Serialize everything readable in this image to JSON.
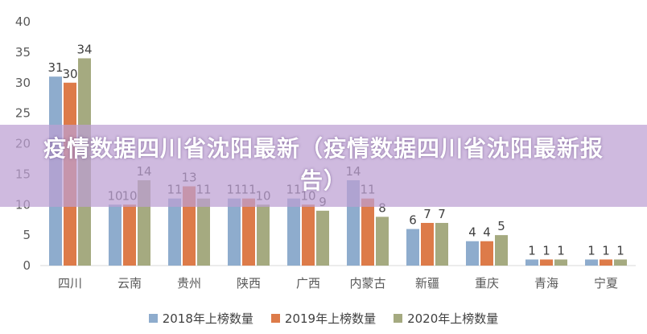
{
  "banner": {
    "title": "疫情数据四川省沈阳最新（疫情数据四川省沈阳最新报告）"
  },
  "chart_data": {
    "type": "bar",
    "categories": [
      "四川",
      "云南",
      "贵州",
      "陕西",
      "广西",
      "内蒙古",
      "新疆",
      "重庆",
      "青海",
      "宁夏"
    ],
    "series": [
      {
        "name": "2018年上榜数量",
        "color": "#8eaccd",
        "values": [
          31,
          10,
          11,
          11,
          11,
          14,
          6,
          4,
          1,
          1
        ]
      },
      {
        "name": "2019年上榜数量",
        "color": "#dd7b49",
        "values": [
          30,
          10,
          13,
          11,
          10,
          11,
          7,
          4,
          1,
          1
        ]
      },
      {
        "name": "2020年上榜数量",
        "color": "#a5aa80",
        "values": [
          34,
          14,
          11,
          10,
          9,
          8,
          7,
          5,
          1,
          1
        ]
      }
    ],
    "ylim": [
      0,
      40
    ],
    "yticks": [
      0,
      5,
      10,
      15,
      20,
      25,
      30,
      35,
      40
    ],
    "grid": false,
    "legend_position": "bottom"
  }
}
